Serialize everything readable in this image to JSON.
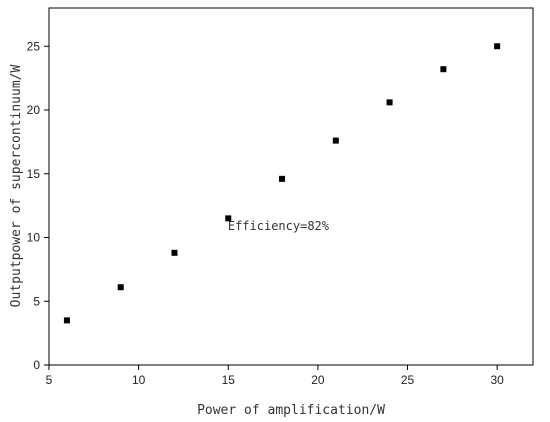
{
  "chart_data": {
    "type": "scatter",
    "xlabel": "Power of amplification/W",
    "ylabel": "Outputpower of supercontinuum/W",
    "xlim": [
      5,
      32
    ],
    "ylim": [
      0,
      28
    ],
    "x_ticks": [
      5,
      10,
      15,
      20,
      25,
      30
    ],
    "y_ticks": [
      0,
      5,
      10,
      15,
      20,
      25
    ],
    "x_tick_labels": [
      "5",
      "10",
      "15",
      "20",
      "25",
      "30"
    ],
    "y_tick_labels": [
      "0",
      "5",
      "10",
      "15",
      "20",
      "25"
    ],
    "grid": false,
    "legend": "none",
    "marker": "square",
    "colors": {
      "marker": "#000000",
      "axis": "#000000"
    },
    "series": [
      {
        "x": [
          6,
          9,
          12,
          15,
          18,
          21,
          24,
          27,
          30
        ],
        "values": [
          3.5,
          6.1,
          8.8,
          11.5,
          14.6,
          17.6,
          20.6,
          23.2,
          25.0
        ]
      }
    ],
    "annotations": [
      {
        "text": "Efficiency=82%",
        "x": 17.8,
        "y": 10.6
      }
    ]
  }
}
